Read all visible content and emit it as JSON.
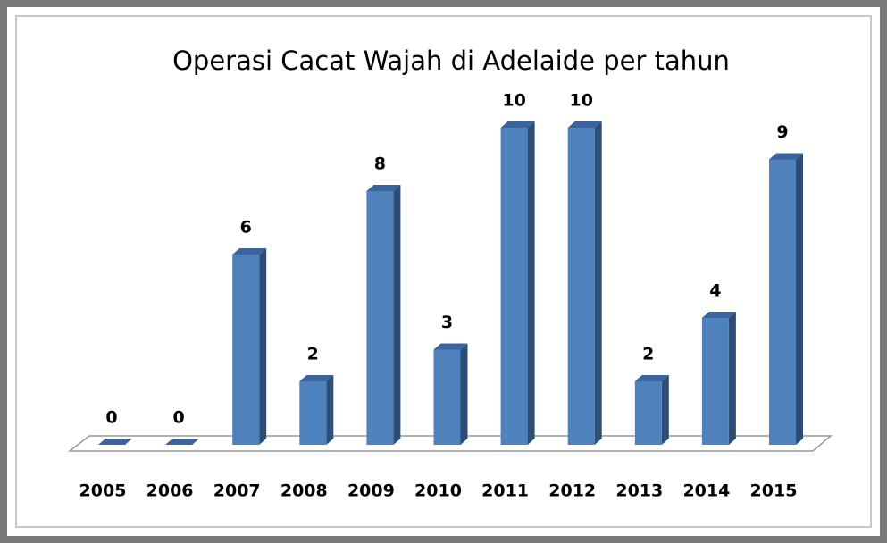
{
  "chart_data": {
    "type": "bar3d",
    "title": "Operasi Cacat Wajah di Adelaide per tahun",
    "categories": [
      "2005",
      "2006",
      "2007",
      "2008",
      "2009",
      "2010",
      "2011",
      "2012",
      "2013",
      "2014",
      "2015"
    ],
    "values": [
      0,
      0,
      6,
      2,
      8,
      3,
      10,
      10,
      2,
      4,
      9
    ],
    "color": "#4f81bd"
  }
}
